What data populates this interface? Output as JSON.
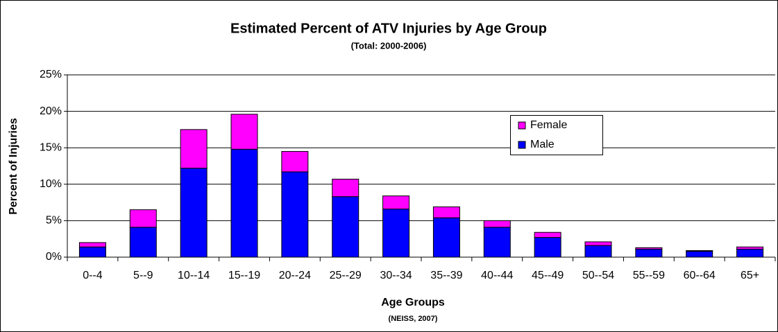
{
  "chart_data": {
    "type": "stacked_bar",
    "title": "Estimated Percent of ATV Injuries by Age Group",
    "subtitle": "(Total: 2000-2006)",
    "x_label": "Age Groups",
    "x_sublabel": "(NEISS, 2007)",
    "y_label": "Percent of Injuries",
    "categories": [
      "0--4",
      "5--9",
      "10--14",
      "15--19",
      "20--24",
      "25--29",
      "30--34",
      "35--39",
      "40--44",
      "45--49",
      "50--54",
      "55--59",
      "60--64",
      "65+"
    ],
    "series": [
      {
        "name": "Male",
        "color": "#0000ff",
        "values": [
          1.4,
          4.1,
          12.2,
          14.8,
          11.7,
          8.3,
          6.6,
          5.4,
          4.1,
          2.7,
          1.6,
          1.1,
          0.8,
          1.1
        ]
      },
      {
        "name": "Female",
        "color": "#ff00ff",
        "values": [
          0.6,
          2.4,
          5.3,
          4.8,
          2.8,
          2.4,
          1.8,
          1.5,
          0.9,
          0.7,
          0.5,
          0.2,
          0.1,
          0.3
        ]
      }
    ],
    "ylim": [
      0,
      25
    ],
    "yticks": [
      {
        "value": 0,
        "label": "0%"
      },
      {
        "value": 5,
        "label": "5%"
      },
      {
        "value": 10,
        "label": "10%"
      },
      {
        "value": 15,
        "label": "15%"
      },
      {
        "value": 20,
        "label": "20%"
      },
      {
        "value": 25,
        "label": "25%"
      }
    ],
    "grid": true,
    "legend": "upper right"
  }
}
